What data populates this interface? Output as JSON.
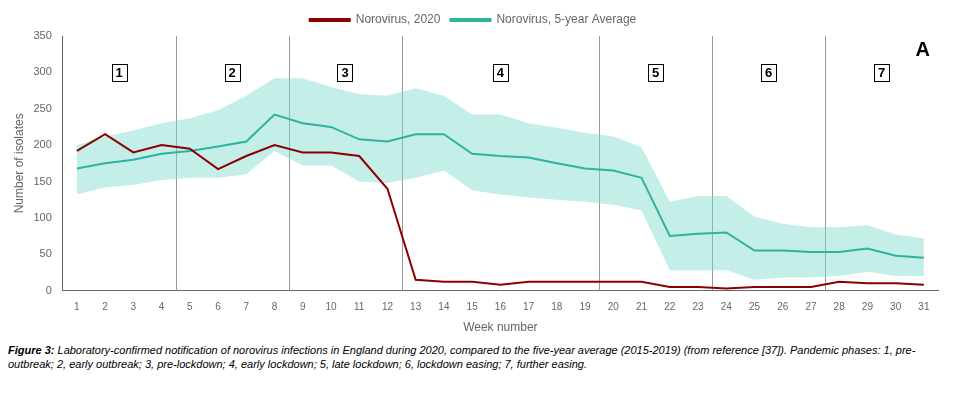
{
  "chart_data": {
    "type": "line",
    "xlabel": "Week number",
    "ylabel": "Number of isolates",
    "x": [
      1,
      2,
      3,
      4,
      5,
      6,
      7,
      8,
      9,
      10,
      11,
      12,
      13,
      14,
      15,
      16,
      17,
      18,
      19,
      20,
      21,
      22,
      23,
      24,
      25,
      26,
      27,
      28,
      29,
      30,
      31
    ],
    "xlim": [
      0.5,
      31.5
    ],
    "xticks": [
      1,
      2,
      3,
      4,
      5,
      6,
      7,
      8,
      9,
      10,
      11,
      12,
      13,
      14,
      15,
      16,
      17,
      18,
      19,
      20,
      21,
      22,
      23,
      24,
      25,
      26,
      27,
      28,
      29,
      30,
      31
    ],
    "ylim": [
      0,
      350
    ],
    "yticks": [
      0,
      50,
      100,
      150,
      200,
      250,
      300,
      350
    ],
    "grid": false,
    "legend": "top",
    "series": [
      {
        "name": "Norovirus, 2020",
        "color": "#8B0000",
        "values": [
          192,
          215,
          190,
          200,
          195,
          167,
          185,
          200,
          190,
          190,
          185,
          140,
          15,
          12,
          12,
          8,
          12,
          12,
          12,
          12,
          12,
          5,
          5,
          3,
          5,
          5,
          5,
          12,
          10,
          10,
          8
        ]
      },
      {
        "name": "Norovirus, 5-year Average",
        "color": "#2DB3A0",
        "values": [
          168,
          175,
          180,
          188,
          192,
          198,
          205,
          242,
          230,
          225,
          208,
          205,
          215,
          215,
          188,
          185,
          183,
          175,
          168,
          165,
          155,
          75,
          78,
          80,
          55,
          55,
          53,
          53,
          58,
          48,
          45
        ],
        "band": {
          "color": "#7DD9CC",
          "upper": [
            200,
            212,
            220,
            230,
            237,
            248,
            268,
            292,
            292,
            280,
            270,
            268,
            278,
            268,
            242,
            242,
            230,
            224,
            217,
            212,
            197,
            122,
            130,
            130,
            102,
            92,
            87,
            87,
            90,
            77,
            72
          ],
          "lower": [
            132,
            142,
            145,
            152,
            155,
            155,
            160,
            192,
            172,
            172,
            150,
            148,
            155,
            165,
            138,
            132,
            128,
            125,
            122,
            118,
            110,
            28,
            28,
            28,
            15,
            18,
            18,
            20,
            26,
            20,
            20
          ]
        }
      }
    ],
    "vlines": [
      4.5,
      8.5,
      12.5,
      19.5,
      23.5,
      27.5
    ],
    "annotations": [
      {
        "x": 2.5,
        "y": 300,
        "text": "1"
      },
      {
        "x": 6.5,
        "y": 300,
        "text": "2"
      },
      {
        "x": 10.5,
        "y": 300,
        "text": "3"
      },
      {
        "x": 16.0,
        "y": 300,
        "text": "4"
      },
      {
        "x": 21.5,
        "y": 300,
        "text": "5"
      },
      {
        "x": 25.5,
        "y": 300,
        "text": "6"
      },
      {
        "x": 29.5,
        "y": 300,
        "text": "7"
      }
    ],
    "panel_label": "A",
    "caption_label": "Figure 3:",
    "caption": "Laboratory-confirmed notification of norovirus infections in England during 2020, compared to the five-year average (2015-2019) (from reference [37]). Pandemic phases: 1, pre-outbreak; 2, early outbreak; 3, pre-lockdown; 4, early lockdown; 5, late lockdown; 6, lockdown easing; 7, further easing."
  }
}
